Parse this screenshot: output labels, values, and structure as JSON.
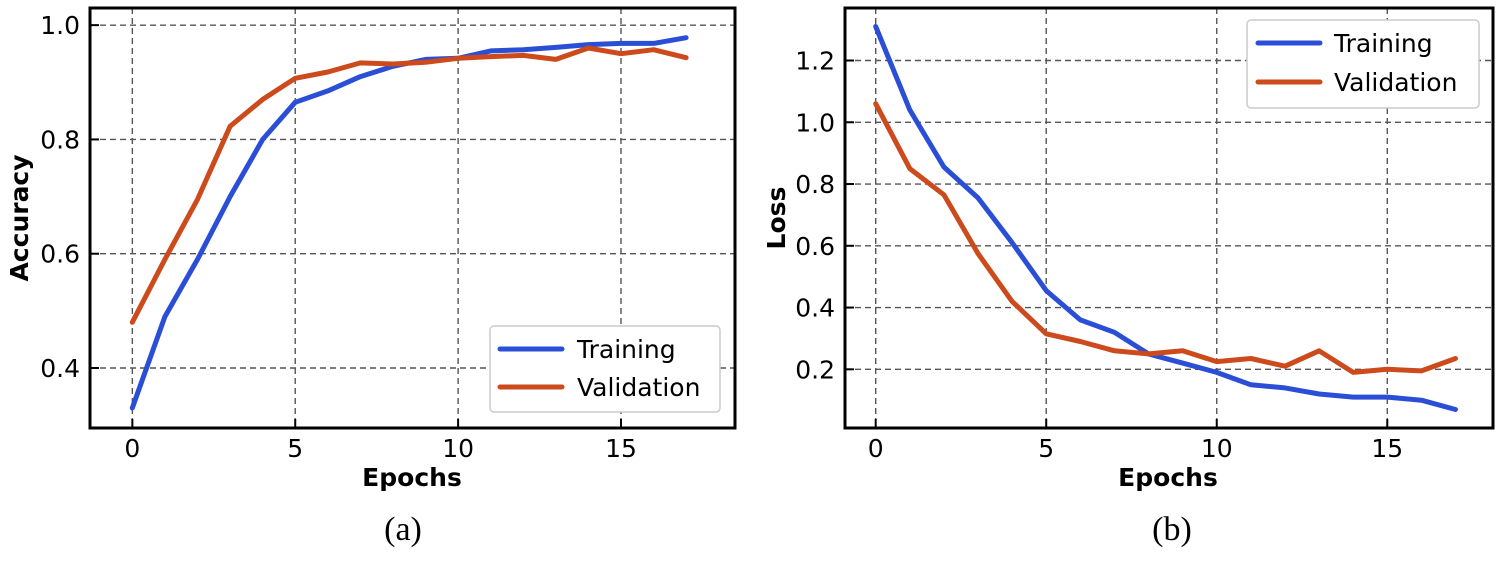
{
  "colors": {
    "training": "#2a4fd6",
    "validation": "#cc4a1c"
  },
  "chart_data": [
    {
      "id": "a",
      "type": "line",
      "caption": "(a)",
      "xlabel": "Epochs",
      "ylabel": "Accuracy",
      "xlim": [
        -1.3,
        18.5
      ],
      "ylim": [
        0.295,
        1.03
      ],
      "xticks": [
        0,
        5,
        10,
        15
      ],
      "yticks": [
        0.4,
        0.6,
        0.8,
        1.0
      ],
      "ytick_labels": [
        "0.4",
        "0.6",
        "0.8",
        "1.0"
      ],
      "grid": true,
      "legend_position": "lower-right",
      "x": [
        0,
        1,
        2,
        3,
        4,
        5,
        6,
        7,
        8,
        9,
        10,
        11,
        12,
        13,
        14,
        15,
        16,
        17
      ],
      "series": [
        {
          "name": "Training",
          "color_key": "training",
          "values": [
            0.33,
            0.49,
            0.59,
            0.7,
            0.8,
            0.865,
            0.885,
            0.91,
            0.928,
            0.94,
            0.942,
            0.955,
            0.957,
            0.961,
            0.966,
            0.968,
            0.968,
            0.978
          ]
        },
        {
          "name": "Validation",
          "color_key": "validation",
          "values": [
            0.48,
            0.59,
            0.695,
            0.823,
            0.87,
            0.907,
            0.918,
            0.934,
            0.932,
            0.935,
            0.942,
            0.945,
            0.947,
            0.94,
            0.96,
            0.95,
            0.957,
            0.943
          ]
        }
      ]
    },
    {
      "id": "b",
      "type": "line",
      "caption": "(b)",
      "xlabel": "Epochs",
      "ylabel": "Loss",
      "xlim": [
        -0.9,
        18.1
      ],
      "ylim": [
        0.01,
        1.37
      ],
      "xticks": [
        0,
        5,
        10,
        15
      ],
      "yticks": [
        0.2,
        0.4,
        0.6,
        0.8,
        1.0,
        1.2
      ],
      "ytick_labels": [
        "0.2",
        "0.4",
        "0.6",
        "0.8",
        "1.0",
        "1.2"
      ],
      "grid": true,
      "legend_position": "top-right",
      "x": [
        0,
        1,
        2,
        3,
        4,
        5,
        6,
        7,
        8,
        9,
        10,
        11,
        12,
        13,
        14,
        15,
        16,
        17
      ],
      "series": [
        {
          "name": "Training",
          "color_key": "training",
          "values": [
            1.31,
            1.04,
            0.855,
            0.755,
            0.61,
            0.455,
            0.36,
            0.32,
            0.25,
            0.22,
            0.19,
            0.15,
            0.14,
            0.12,
            0.11,
            0.11,
            0.1,
            0.07
          ]
        },
        {
          "name": "Validation",
          "color_key": "validation",
          "values": [
            1.06,
            0.85,
            0.765,
            0.575,
            0.42,
            0.315,
            0.29,
            0.26,
            0.25,
            0.26,
            0.225,
            0.235,
            0.21,
            0.26,
            0.19,
            0.2,
            0.195,
            0.235
          ]
        }
      ]
    }
  ]
}
